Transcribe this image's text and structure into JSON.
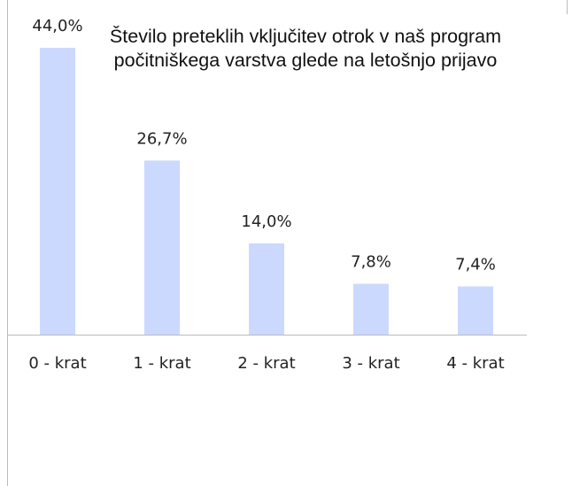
{
  "chart_data": {
    "type": "bar",
    "title": "Število preteklih vključitev otrok v naš program počitniškega varstva glede na letošnjo prijavo",
    "categories": [
      "0 - krat",
      "1 - krat",
      "2 - krat",
      "3 - krat",
      "4 - krat"
    ],
    "values": [
      44.0,
      26.7,
      14.0,
      7.8,
      7.4
    ],
    "value_labels": [
      "44,0%",
      "26,7%",
      "14,0%",
      "7,8%",
      "7,4%"
    ],
    "color": "#ccd9ff"
  }
}
